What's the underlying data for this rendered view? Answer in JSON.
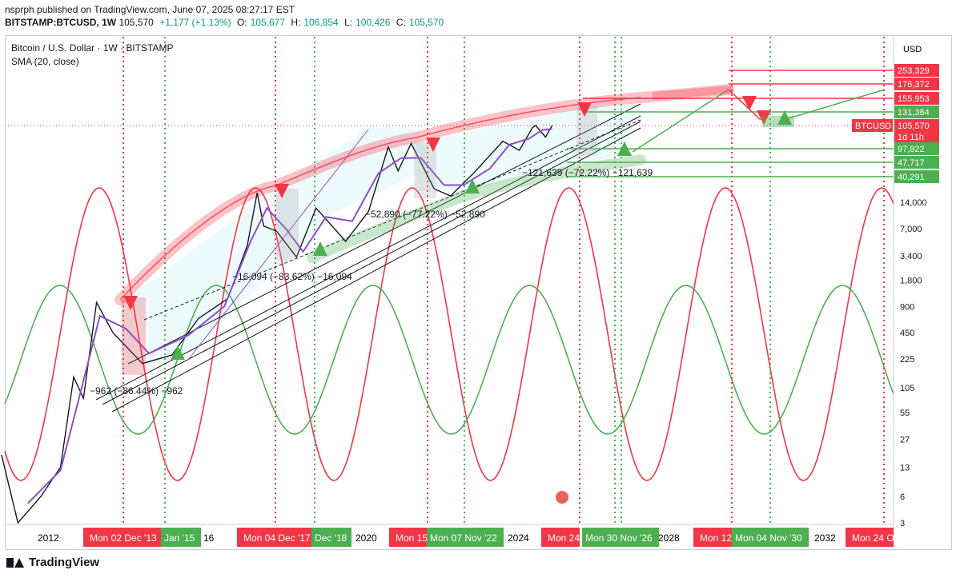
{
  "header": {
    "line1": "nsprph published on TradingView.com, June 07, 2025 08:27:17 EST",
    "symbol": "BITSTAMP:BTCUSD, 1W",
    "last": "105,570",
    "change": "+1,177 (+1.13%)",
    "open_label": "O:",
    "open": "105,677",
    "high_label": "H:",
    "high": "106,854",
    "low_label": "L:",
    "low": "100,426",
    "close_label": "C:",
    "close": "105,570"
  },
  "legend": {
    "title": "Bitcoin / U.S. Dollar · 1W · BITSTAMP",
    "indicator": "SMA (20, close)"
  },
  "footer": {
    "brand": "TradingView"
  },
  "colors": {
    "red": "#f23645",
    "green": "#4caf50",
    "purple": "#8e4ec6",
    "cyan": "#4dd0e1",
    "price_label": "#f23645",
    "text": "#131722"
  },
  "icons": [
    "tradingview-logo-icon",
    "symbol-badge-icon",
    "flag-icon"
  ],
  "chart_data": {
    "type": "line",
    "title": "Bitcoin / U.S. Dollar · 1W · BITSTAMP",
    "xlabel": "",
    "ylabel": "",
    "currency": "USD",
    "log_scale": true,
    "grid": false,
    "ylim": [
      3,
      253329
    ],
    "x_ticks": [
      "2012",
      "16",
      "2020",
      "2024",
      "2028",
      "2032"
    ],
    "y_ticks": [
      "14,000",
      "7,000",
      "3,400",
      "1,800",
      "900",
      "450",
      "225",
      "105",
      "55",
      "27",
      "13",
      "6",
      "3"
    ],
    "price_levels": [
      {
        "label": "253,329",
        "color": "#f23645"
      },
      {
        "label": "176,372",
        "color": "#f23645"
      },
      {
        "label": "155,953",
        "color": "#f23645"
      },
      {
        "label": "131,384",
        "color": "#4caf50"
      },
      {
        "label": "105,570",
        "color": "#f23645",
        "tag": "BTCUSD",
        "sublabel": "1d 11h"
      },
      {
        "label": "97,922",
        "color": "#4caf50"
      },
      {
        "label": "47,717",
        "color": "#4caf50"
      },
      {
        "label": "40,291",
        "color": "#4caf50"
      }
    ],
    "cycle_tops": [
      {
        "date_label": "Mon 02 Dec '13",
        "color": "#f23645"
      },
      {
        "date_label": "Mon 04 Dec '17",
        "color": "#f23645"
      },
      {
        "date_label": "Mon 15",
        "color": "#f23645"
      },
      {
        "date_label": "Mon 24",
        "color": "#f23645"
      },
      {
        "date_label": "Mon 12",
        "color": "#f23645"
      },
      {
        "date_label": "Mon 24 O",
        "color": "#f23645"
      }
    ],
    "cycle_bottoms": [
      {
        "date_label": "Jan '15",
        "color": "#4caf50"
      },
      {
        "date_label": "Dec '18",
        "color": "#4caf50"
      },
      {
        "date_label": "Mon 07 Nov '22",
        "color": "#4caf50"
      },
      {
        "date_label": "Mon 30 Nov '26",
        "color": "#4caf50"
      },
      {
        "date_label": "Mon 04 Nov '30",
        "color": "#4caf50"
      }
    ],
    "drawdowns": [
      {
        "text": "−962 (−86.44%) −962"
      },
      {
        "text": "−16,094 (−83.62%) −16,094"
      },
      {
        "text": "−52,890 (−77.22%) −52,890"
      },
      {
        "text": "−121,639 (−72.22%) −121,639"
      }
    ],
    "series": [
      {
        "name": "BTCUSD",
        "color": "#131722",
        "points": [
          [
            "2011-06",
            18
          ],
          [
            "2011-11",
            3
          ],
          [
            "2012-06",
            6
          ],
          [
            "2012-12",
            13
          ],
          [
            "2013-04",
            140
          ],
          [
            "2013-07",
            80
          ],
          [
            "2013-11",
            1000
          ],
          [
            "2014-04",
            450
          ],
          [
            "2015-01",
            200
          ],
          [
            "2015-10",
            250
          ],
          [
            "2016-06",
            650
          ],
          [
            "2017-03",
            1100
          ],
          [
            "2017-09",
            4500
          ],
          [
            "2017-12",
            18000
          ],
          [
            "2018-02",
            7500
          ],
          [
            "2018-06",
            6500
          ],
          [
            "2018-12",
            3300
          ],
          [
            "2019-06",
            12000
          ],
          [
            "2020-03",
            5000
          ],
          [
            "2020-10",
            11000
          ],
          [
            "2021-04",
            60000
          ],
          [
            "2021-07",
            32000
          ],
          [
            "2021-11",
            66000
          ],
          [
            "2022-06",
            20000
          ],
          [
            "2022-11",
            16500
          ],
          [
            "2023-06",
            30000
          ],
          [
            "2024-03",
            70000
          ],
          [
            "2024-08",
            55000
          ],
          [
            "2024-12",
            100000
          ],
          [
            "2025-01",
            106000
          ],
          [
            "2025-04",
            78000
          ],
          [
            "2025-06",
            105570
          ]
        ]
      },
      {
        "name": "SMA (20, close)",
        "color": "#8e4ec6",
        "points": [
          [
            "2012-02",
            5
          ],
          [
            "2012-12",
            12
          ],
          [
            "2013-06",
            90
          ],
          [
            "2013-12",
            700
          ],
          [
            "2014-08",
            500
          ],
          [
            "2015-03",
            260
          ],
          [
            "2016-03",
            420
          ],
          [
            "2017-02",
            900
          ],
          [
            "2017-10",
            5000
          ],
          [
            "2018-03",
            12000
          ],
          [
            "2018-09",
            6800
          ],
          [
            "2019-02",
            3800
          ],
          [
            "2019-09",
            9500
          ],
          [
            "2020-05",
            8500
          ],
          [
            "2021-01",
            30000
          ],
          [
            "2021-08",
            45000
          ],
          [
            "2022-02",
            45000
          ],
          [
            "2022-09",
            22000
          ],
          [
            "2023-03",
            22000
          ],
          [
            "2023-11",
            34000
          ],
          [
            "2024-05",
            64000
          ],
          [
            "2024-11",
            75000
          ],
          [
            "2025-03",
            94000
          ],
          [
            "2025-06",
            97000
          ]
        ]
      }
    ]
  }
}
